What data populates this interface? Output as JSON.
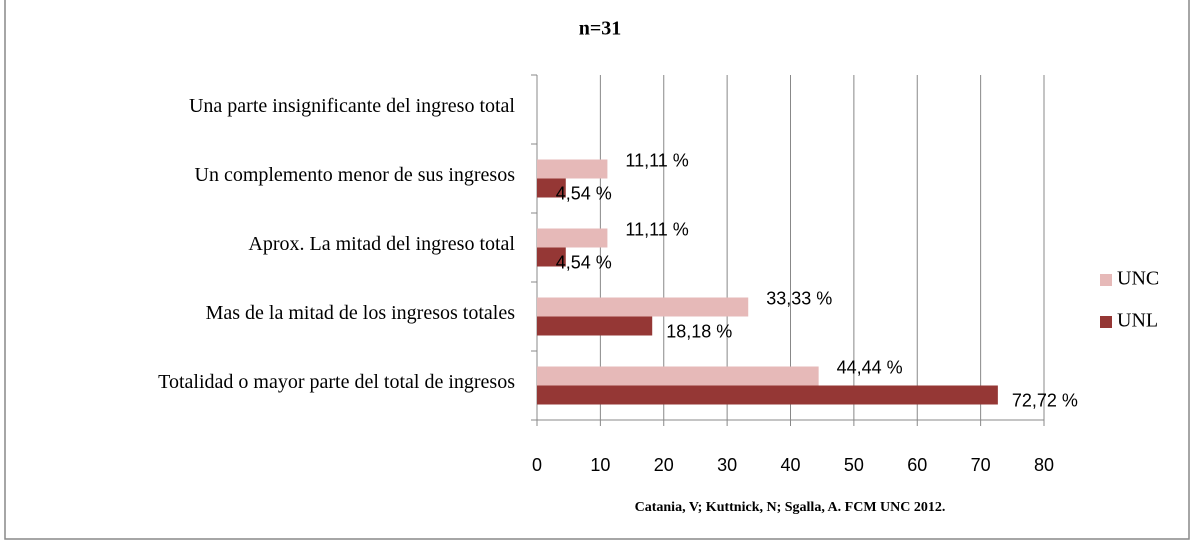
{
  "chart_data": {
    "type": "hbar",
    "title": "n=31",
    "footnote": "Catania, V; Kuttnick, N; Sgalla, A. FCM UNC 2012.",
    "categories": [
      "Una parte insignificante del ingreso total",
      "Un complemento menor de sus ingresos",
      "Aprox. La mitad del ingreso total",
      "Mas de la mitad de los ingresos totales",
      "Totalidad o mayor parte del total de ingresos"
    ],
    "series": [
      {
        "name": "UNC",
        "color": "#e6b9b8",
        "values": [
          null,
          11.11,
          11.11,
          33.33,
          44.44
        ],
        "value_labels": [
          null,
          "11,11 %",
          "11,11 %",
          "33,33 %",
          "44,44 %"
        ]
      },
      {
        "name": "UNL",
        "color": "#953735",
        "values": [
          null,
          4.54,
          4.54,
          18.18,
          72.72
        ],
        "value_labels": [
          null,
          "4,54 %",
          "4,54 %",
          "18,18 %",
          "72,72 %"
        ]
      }
    ],
    "xlim": [
      0,
      80
    ],
    "xticks": [
      0,
      10,
      20,
      30,
      40,
      50,
      60,
      70,
      80
    ],
    "grid": true,
    "legend": "right"
  }
}
